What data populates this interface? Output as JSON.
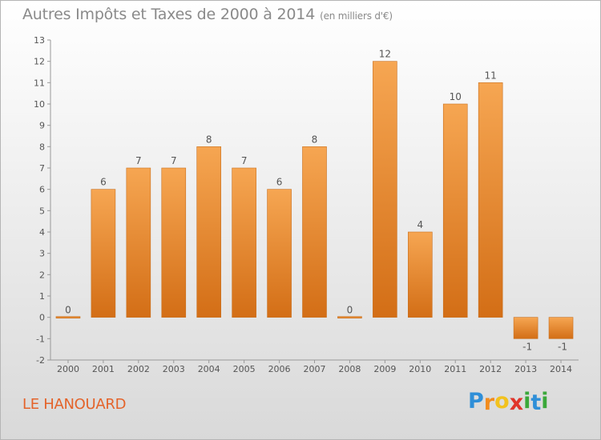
{
  "title": "Autres Impôts et Taxes de 2000 à 2014",
  "unit": "(en milliers d'€)",
  "commune": "LE HANOUARD",
  "logo": {
    "letters": [
      "P",
      "r",
      "o",
      "x",
      "i",
      "t",
      "i"
    ],
    "colors": [
      "#2f8fd8",
      "#f28c1e",
      "#f2c21e",
      "#e0342a",
      "#3aa83a",
      "#2f8fd8",
      "#3aa83a"
    ]
  },
  "colors": {
    "bar_top": "#f6a652",
    "bar_bottom": "#d36e16",
    "bar_edge": "#c9701f"
  },
  "chart_data": {
    "type": "bar",
    "categories": [
      "2000",
      "2001",
      "2002",
      "2003",
      "2004",
      "2005",
      "2006",
      "2007",
      "2008",
      "2009",
      "2010",
      "2011",
      "2012",
      "2013",
      "2014"
    ],
    "values": [
      0,
      6,
      7,
      7,
      8,
      7,
      6,
      8,
      0,
      12,
      4,
      10,
      11,
      -1,
      -1
    ],
    "title": "Autres Impôts et Taxes de 2000 à 2014",
    "xlabel": "",
    "ylabel": "",
    "ylim": [
      -2,
      13
    ],
    "yticks": [
      -2,
      -1,
      0,
      1,
      2,
      3,
      4,
      5,
      6,
      7,
      8,
      9,
      10,
      11,
      12,
      13
    ],
    "grid": false
  }
}
